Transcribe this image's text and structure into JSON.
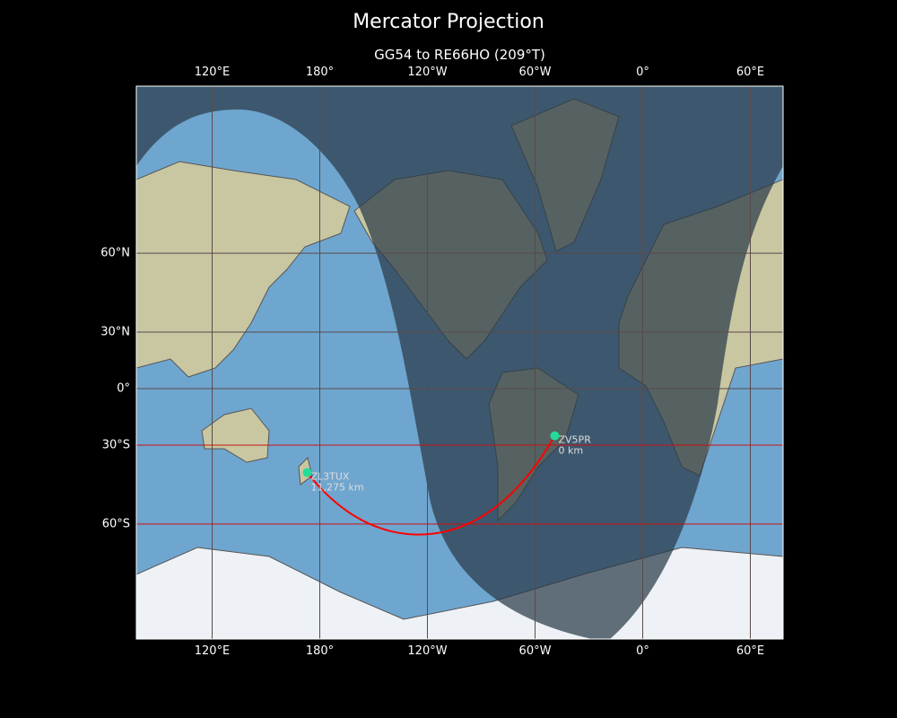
{
  "title": "Mercator Projection",
  "subtitle": "GG54 to RE66HO (209°T)",
  "map": {
    "projection": "Mercator",
    "central_longitude": -102,
    "lat_range": [
      -80,
      84
    ],
    "night_shading": true,
    "colors": {
      "ocean": "#6fa6cf",
      "land": "#c9c7a2",
      "ice": "#eef2f6",
      "night": "#2a3a48",
      "path": "#ff0000",
      "station": "#22dd99",
      "grid": "#5a4a4a"
    },
    "x_ticks": [
      {
        "lon": 120,
        "label": "120°E"
      },
      {
        "lon": 180,
        "label": "180°"
      },
      {
        "lon": -120,
        "label": "120°W"
      },
      {
        "lon": -60,
        "label": "60°W"
      },
      {
        "lon": 0,
        "label": "0°"
      },
      {
        "lon": 60,
        "label": "60°E"
      }
    ],
    "y_ticks": [
      {
        "lat": 60,
        "label": "60°N"
      },
      {
        "lat": 30,
        "label": "30°N"
      },
      {
        "lat": 0,
        "label": "0°"
      },
      {
        "lat": -30,
        "label": "30°S"
      },
      {
        "lat": -60,
        "label": "60°S"
      }
    ],
    "highlighted_parallels": [
      -30,
      -60
    ]
  },
  "stations": [
    {
      "call": "ZV5PR",
      "distance": "0 km",
      "lat": -25.4,
      "lon": -49
    },
    {
      "call": "ZL3TUX",
      "distance": "11,275 km",
      "lat": -42.3,
      "lon": 173
    }
  ]
}
